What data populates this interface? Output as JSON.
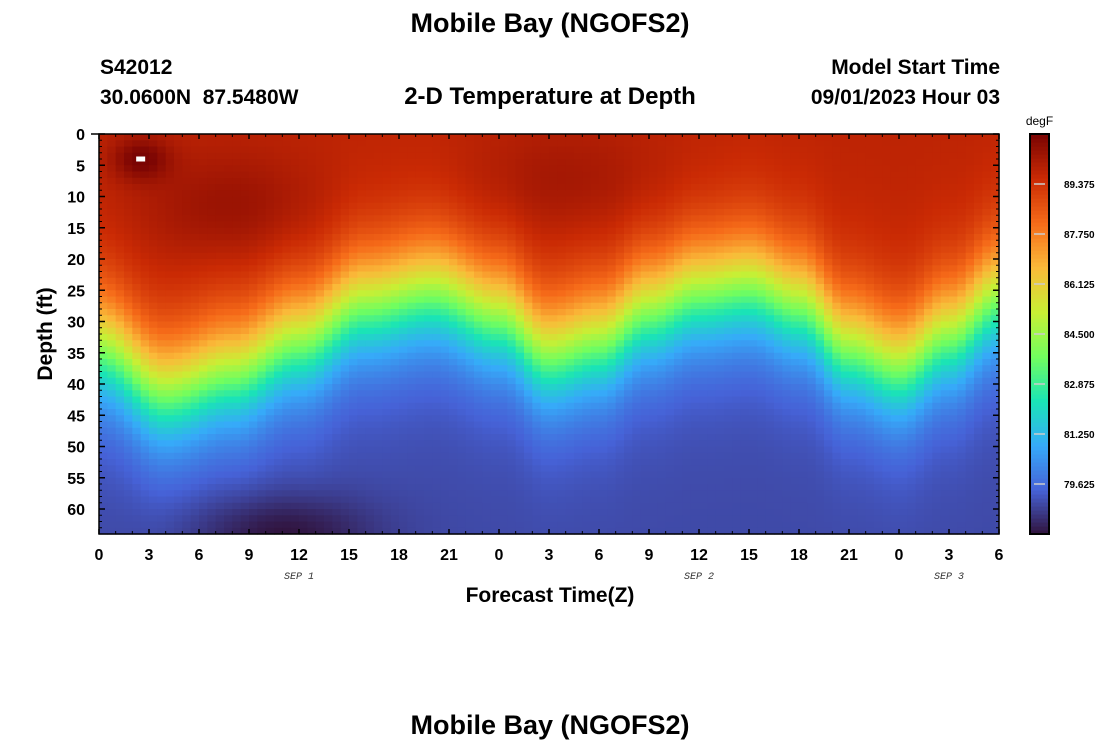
{
  "title": "Mobile Bay (NGOFS2)",
  "bottom_title": "Mobile Bay (NGOFS2)",
  "station": {
    "id": "S42012",
    "coords": "30.0600N  87.5480W"
  },
  "subtitle": "2-D Temperature at Depth",
  "model_start": {
    "label": "Model Start Time",
    "value": "09/01/2023 Hour 03"
  },
  "chart_data": {
    "type": "heatmap",
    "title": "2-D Temperature at Depth",
    "xlabel": "Forecast Time(Z)",
    "ylabel": "Depth (ft)",
    "x_unit": "forecast hour",
    "xlim": [
      0,
      54
    ],
    "ylim": [
      64,
      0
    ],
    "x_ticks": [
      0,
      3,
      6,
      9,
      12,
      15,
      18,
      21,
      24,
      27,
      30,
      33,
      36,
      39,
      42,
      45,
      48,
      51,
      54
    ],
    "x_tick_labels": [
      "0",
      "3",
      "6",
      "9",
      "12",
      "15",
      "18",
      "21",
      "0",
      "3",
      "6",
      "9",
      "12",
      "15",
      "18",
      "21",
      "0",
      "3",
      "6"
    ],
    "day_labels": [
      {
        "hour": 12,
        "label": "SEP 1"
      },
      {
        "hour": 36,
        "label": "SEP 2"
      },
      {
        "hour": 51,
        "label": "SEP 3"
      }
    ],
    "y_ticks": [
      0,
      5,
      10,
      15,
      20,
      25,
      30,
      35,
      40,
      45,
      50,
      55,
      60
    ],
    "colorbar": {
      "unit": "degF",
      "min": 78.0,
      "max": 91.0,
      "tick_values": [
        89.375,
        87.75,
        86.125,
        84.5,
        82.875,
        81.25,
        79.625
      ],
      "tick_labels": [
        "89.375",
        "87.750",
        "86.125",
        "84.500",
        "82.875",
        "81.250",
        "79.625"
      ],
      "colormap": [
        "#30123b",
        "#4662d7",
        "#36aaf9",
        "#1ae4b6",
        "#72fe5e",
        "#c8ef34",
        "#faba39",
        "#f66b19",
        "#ca2a04",
        "#7a0403"
      ]
    },
    "thermocline_depth_ft": [
      {
        "hour": 0,
        "depth": 34
      },
      {
        "hour": 4,
        "depth": 41
      },
      {
        "hour": 8,
        "depth": 38
      },
      {
        "hour": 12,
        "depth": 33
      },
      {
        "hour": 16,
        "depth": 27
      },
      {
        "hour": 20,
        "depth": 25
      },
      {
        "hour": 24,
        "depth": 29
      },
      {
        "hour": 27,
        "depth": 35
      },
      {
        "hour": 30,
        "depth": 33
      },
      {
        "hour": 33,
        "depth": 28
      },
      {
        "hour": 36,
        "depth": 25
      },
      {
        "hour": 39,
        "depth": 24
      },
      {
        "hour": 42,
        "depth": 27
      },
      {
        "hour": 45,
        "depth": 34
      },
      {
        "hour": 48,
        "depth": 37
      },
      {
        "hour": 51,
        "depth": 32
      },
      {
        "hour": 54,
        "depth": 26
      }
    ],
    "surface_temp_degF": 89.8,
    "bottom_temp_degF": 79.0,
    "max_cell": {
      "hour": 2.5,
      "depth": 4,
      "temp_degF": 91.0
    }
  }
}
